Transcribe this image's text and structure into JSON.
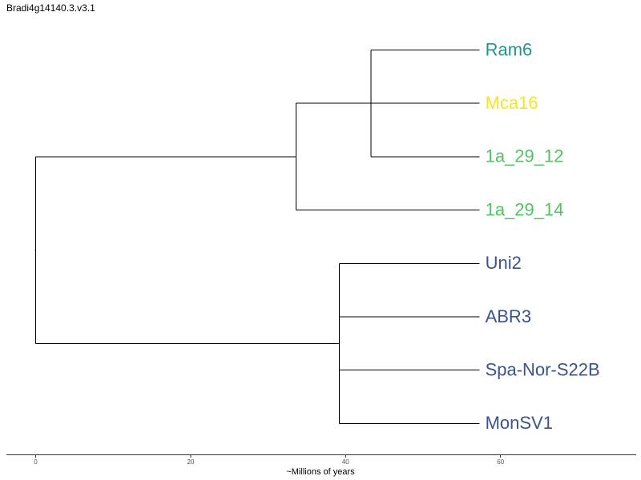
{
  "title": "Bradi4g14140.3.v3.1",
  "axis": {
    "label": "~Millions of years",
    "ticks": [
      0,
      20,
      40,
      60
    ]
  },
  "tips": [
    {
      "name": "Ram6",
      "color": "#26928c"
    },
    {
      "name": "Mca16",
      "color": "#f8e41f"
    },
    {
      "name": "1a_29_12",
      "color": "#4fc55f"
    },
    {
      "name": "1a_29_14",
      "color": "#4fc55f"
    },
    {
      "name": "Uni2",
      "color": "#3b528b"
    },
    {
      "name": "ABR3",
      "color": "#3b528b"
    },
    {
      "name": "Spa-Nor-S22B",
      "color": "#3b528b"
    },
    {
      "name": "MonSV1",
      "color": "#3b528b"
    }
  ],
  "tree": {
    "age": 0,
    "children": [
      {
        "age": 33.6,
        "children": [
          {
            "age": 43.3,
            "children": [
              {
                "tip": 0,
                "age": 57.3
              },
              {
                "tip": 2,
                "age": 57.3
              }
            ]
          },
          {
            "tip": 1,
            "age": 57.3
          },
          {
            "tip": 3,
            "age": 57.3
          }
        ]
      },
      {
        "age": 39.2,
        "children": [
          {
            "tip": 4,
            "age": 57.3
          },
          {
            "tip": 5,
            "age": 57.3
          },
          {
            "tip": 6,
            "age": 57.3
          },
          {
            "tip": 7,
            "age": 57.3
          }
        ]
      }
    ]
  }
}
